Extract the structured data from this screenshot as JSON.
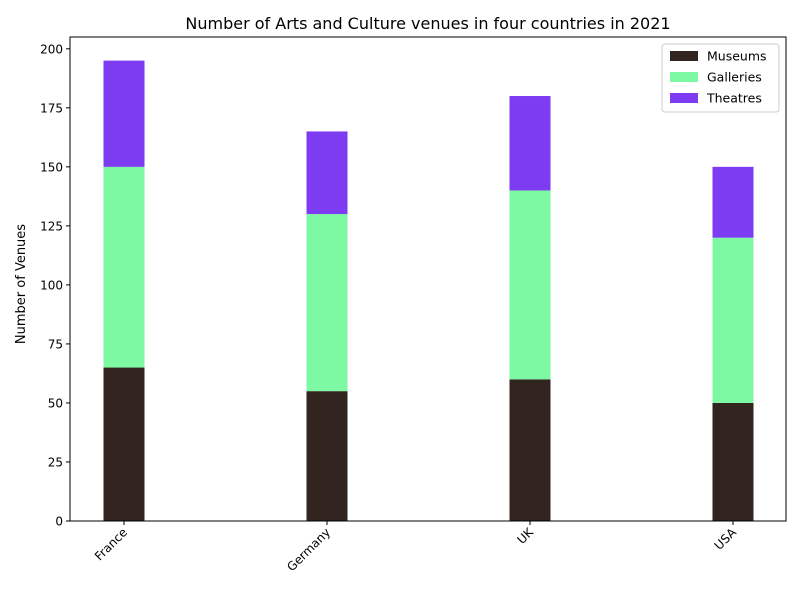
{
  "chart_data": {
    "type": "bar",
    "stacked": true,
    "title": "Number of Arts and Culture venues in four countries in 2021",
    "xlabel": "",
    "ylabel": "Number of Venues",
    "categories": [
      "France",
      "Germany",
      "UK",
      "USA"
    ],
    "series": [
      {
        "name": "Museums",
        "values": [
          65,
          55,
          60,
          50
        ],
        "color": "#32241F"
      },
      {
        "name": "Galleries",
        "values": [
          85,
          75,
          80,
          70
        ],
        "color": "#7CF9A2"
      },
      {
        "name": "Theatres",
        "values": [
          45,
          35,
          40,
          30
        ],
        "color": "#7D3BF2"
      }
    ],
    "ylim": [
      0,
      205
    ],
    "yticks": [
      0,
      25,
      50,
      75,
      100,
      125,
      150,
      175,
      200
    ],
    "grid": false,
    "legend_position": "top-right"
  }
}
